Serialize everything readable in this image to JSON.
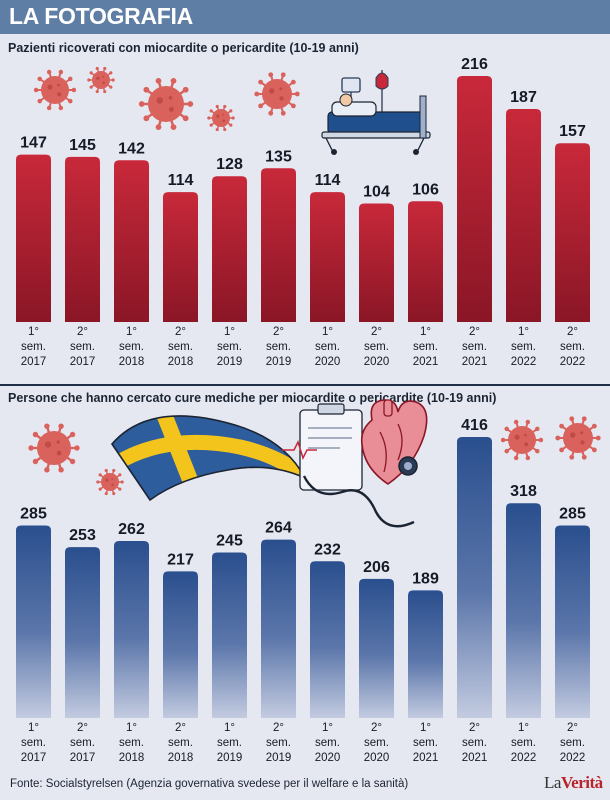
{
  "header": {
    "title": "LA FOTOGRAFIA"
  },
  "colors": {
    "banner": "#5f7ea5",
    "red_bar_top": "#c8293a",
    "red_bar_bottom": "#8a1626",
    "blue_bar_top": "#2a4f8e",
    "blue_bar_bottom": "#c3cbe0",
    "virus": "#d9625c",
    "background": "#e6e8f1"
  },
  "icons": [
    "virus-icon",
    "hospital-bed-icon",
    "swedish-flag-icon",
    "heart-stethoscope-icon"
  ],
  "periods": [
    {
      "num": "1°",
      "sem": "sem.",
      "year": "2017"
    },
    {
      "num": "2°",
      "sem": "sem.",
      "year": "2017"
    },
    {
      "num": "1°",
      "sem": "sem.",
      "year": "2018"
    },
    {
      "num": "2°",
      "sem": "sem.",
      "year": "2018"
    },
    {
      "num": "1°",
      "sem": "sem.",
      "year": "2019"
    },
    {
      "num": "2°",
      "sem": "sem.",
      "year": "2019"
    },
    {
      "num": "1°",
      "sem": "sem.",
      "year": "2020"
    },
    {
      "num": "2°",
      "sem": "sem.",
      "year": "2020"
    },
    {
      "num": "1°",
      "sem": "sem.",
      "year": "2021"
    },
    {
      "num": "2°",
      "sem": "sem.",
      "year": "2021"
    },
    {
      "num": "1°",
      "sem": "sem.",
      "year": "2022"
    },
    {
      "num": "2°",
      "sem": "sem.",
      "year": "2022"
    }
  ],
  "chart_data": [
    {
      "type": "bar",
      "title": "Pazienti ricoverati con miocardite o pericardite (10-19 anni)",
      "categories": [
        "1° sem. 2017",
        "2° sem. 2017",
        "1° sem. 2018",
        "2° sem. 2018",
        "1° sem. 2019",
        "2° sem. 2019",
        "1° sem. 2020",
        "2° sem. 2020",
        "1° sem. 2021",
        "2° sem. 2021",
        "1° sem. 2022",
        "2° sem. 2022"
      ],
      "values": [
        147,
        145,
        142,
        114,
        128,
        135,
        114,
        104,
        106,
        216,
        187,
        157
      ],
      "xlabel": "",
      "ylabel": "",
      "ylim": [
        0,
        216
      ],
      "grid": false
    },
    {
      "type": "bar",
      "title": "Persone che hanno cercato cure mediche per miocardite o pericardite (10-19 anni)",
      "categories": [
        "1° sem. 2017",
        "2° sem. 2017",
        "1° sem. 2018",
        "2° sem. 2018",
        "1° sem. 2019",
        "2° sem. 2019",
        "1° sem. 2020",
        "2° sem. 2020",
        "1° sem. 2021",
        "2° sem. 2021",
        "1° sem. 2022",
        "2° sem. 2022"
      ],
      "values": [
        285,
        253,
        262,
        217,
        245,
        264,
        232,
        206,
        189,
        416,
        318,
        285
      ],
      "xlabel": "",
      "ylabel": "",
      "ylim": [
        0,
        416
      ],
      "grid": false
    }
  ],
  "footer": {
    "source": "Fonte: Socialstyrelsen (Agenzia governativa svedese per il welfare e la sanità)"
  },
  "logo": {
    "part1": "La",
    "part2": "Verità"
  }
}
